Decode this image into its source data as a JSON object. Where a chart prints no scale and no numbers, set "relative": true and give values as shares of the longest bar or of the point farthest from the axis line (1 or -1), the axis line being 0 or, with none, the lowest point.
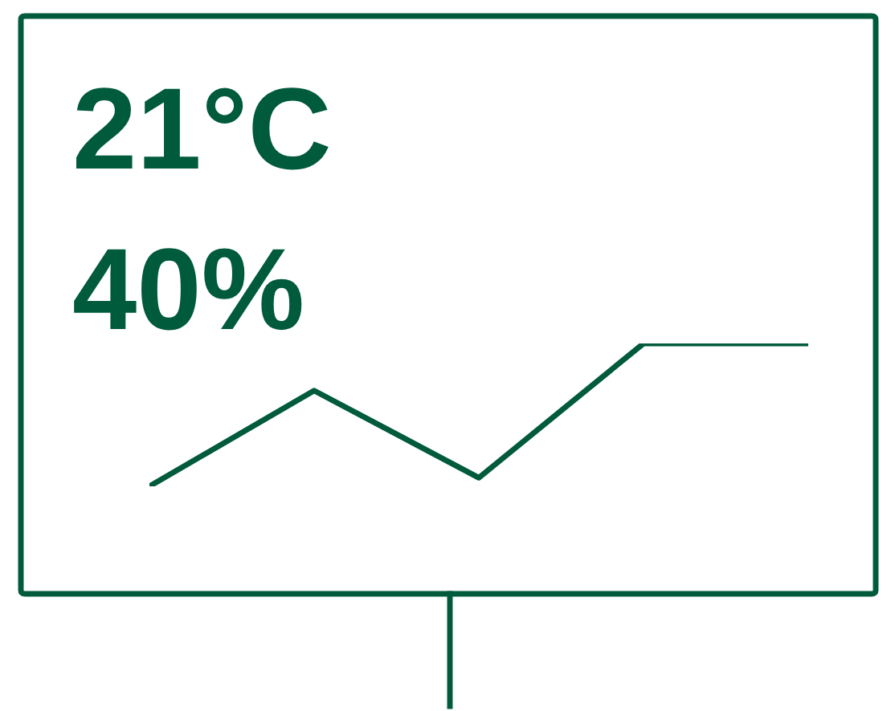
{
  "chart_data": {
    "type": "line",
    "relative": true,
    "categories": [
      null,
      null,
      null,
      null,
      null
    ],
    "series": [
      {
        "color": "#005a3c",
        "values": [
          0,
          0.67,
          0.06,
          1,
          1
        ]
      }
    ],
    "annotations": [
      "21°C",
      "40%"
    ],
    "marker": "none",
    "line_style": "solid"
  }
}
